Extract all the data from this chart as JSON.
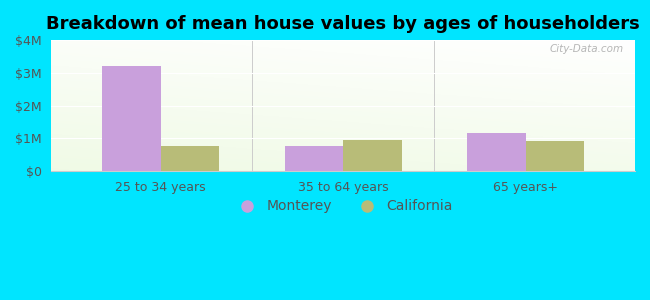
{
  "title": "Breakdown of mean house values by ages of householders",
  "categories": [
    "25 to 34 years",
    "35 to 64 years",
    "65 years+"
  ],
  "monterey_values": [
    3200000,
    750000,
    1150000
  ],
  "california_values": [
    750000,
    950000,
    900000
  ],
  "monterey_color": "#c9a0dc",
  "california_color": "#b8bc78",
  "background_outer": "#00e5ff",
  "ylim": [
    0,
    4000000
  ],
  "yticks": [
    0,
    1000000,
    2000000,
    3000000,
    4000000
  ],
  "ytick_labels": [
    "$0",
    "$1M",
    "$2M",
    "$3M",
    "$4M"
  ],
  "bar_width": 0.32,
  "watermark": "City-Data.com",
  "legend_labels": [
    "Monterey",
    "California"
  ],
  "title_fontsize": 13,
  "tick_fontsize": 9,
  "legend_fontsize": 10
}
